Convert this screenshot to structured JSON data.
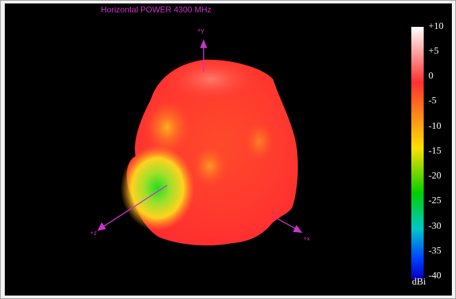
{
  "window": {
    "title": "Horizontal POWER 4300  MHz"
  },
  "plot": {
    "axes": {
      "y_label": "+y",
      "z_label": "+z",
      "x_label": "+x"
    },
    "axis_color": "#cc33cc",
    "title_color": "#cc33cc"
  },
  "colorbar": {
    "ticks": [
      "+10",
      "+5",
      "0",
      "-5",
      "-10",
      "-15",
      "-20",
      "-25",
      "-30",
      "-35",
      "-40"
    ],
    "unit": "dBi",
    "colors": [
      "#ffffff",
      "#ff3030",
      "#ffe000",
      "#00d000",
      "#00c8c8",
      "#0040ff",
      "#0000c0"
    ]
  }
}
